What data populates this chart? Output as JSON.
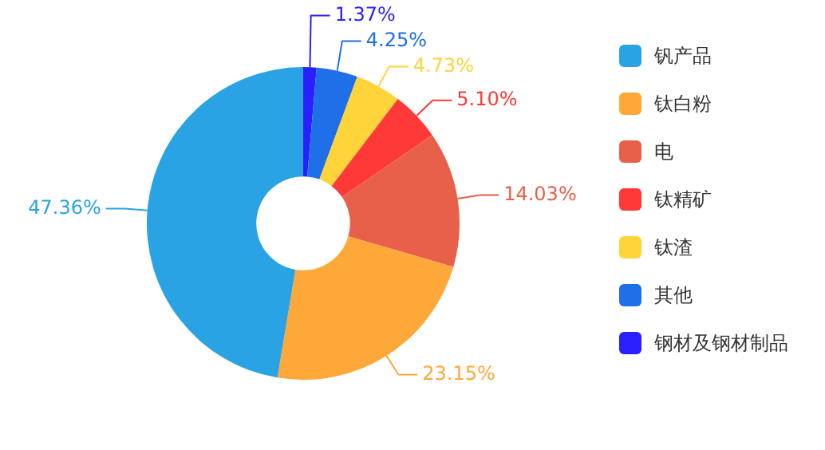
{
  "chart_data": {
    "type": "donut",
    "categories": [
      "钒产品",
      "钛白粉",
      "电",
      "钛精矿",
      "钛渣",
      "其他",
      "钢材及钢材制品"
    ],
    "values": [
      47.36,
      23.15,
      14.03,
      5.1,
      4.73,
      4.25,
      1.37
    ],
    "colors": [
      "#29a3e3",
      "#ffa83a",
      "#e8604a",
      "#ff3838",
      "#ffd33a",
      "#1e6fe8",
      "#2a1fff"
    ],
    "value_labels": [
      "47.36%",
      "23.15%",
      "14.03%",
      "5.10%",
      "4.73%",
      "4.25%",
      "1.37%"
    ],
    "legend": "right"
  }
}
